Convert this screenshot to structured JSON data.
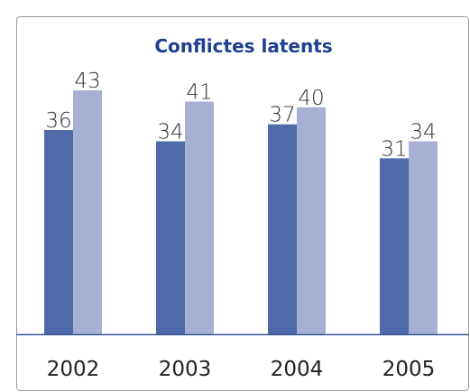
{
  "chart_data": {
    "type": "bar",
    "title": "Conflictes latents",
    "categories": [
      "2002",
      "2003",
      "2004",
      "2005"
    ],
    "series": [
      {
        "color": "#4f6aa8",
        "values": [
          36,
          34,
          37,
          31
        ]
      },
      {
        "color": "#a7b0d4",
        "values": [
          43,
          41,
          40,
          34
        ]
      }
    ],
    "baseline_color": "#3f5a9a",
    "title_color": "#1f3f8f"
  }
}
